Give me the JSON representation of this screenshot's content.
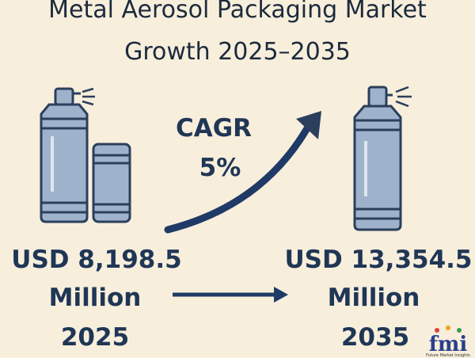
{
  "title": {
    "line1": "Metal Aerosol Packaging Market",
    "line2": "Growth 2025–2035"
  },
  "cagr": {
    "label": "CAGR",
    "value": "5%"
  },
  "start": {
    "amount": "USD 8,198.5",
    "unit": "Million",
    "year": "2025"
  },
  "end": {
    "amount": "USD 13,354.5",
    "unit": "Million",
    "year": "2035"
  },
  "logo": {
    "name": "fmi",
    "tagline": "Future Market Insights"
  }
}
